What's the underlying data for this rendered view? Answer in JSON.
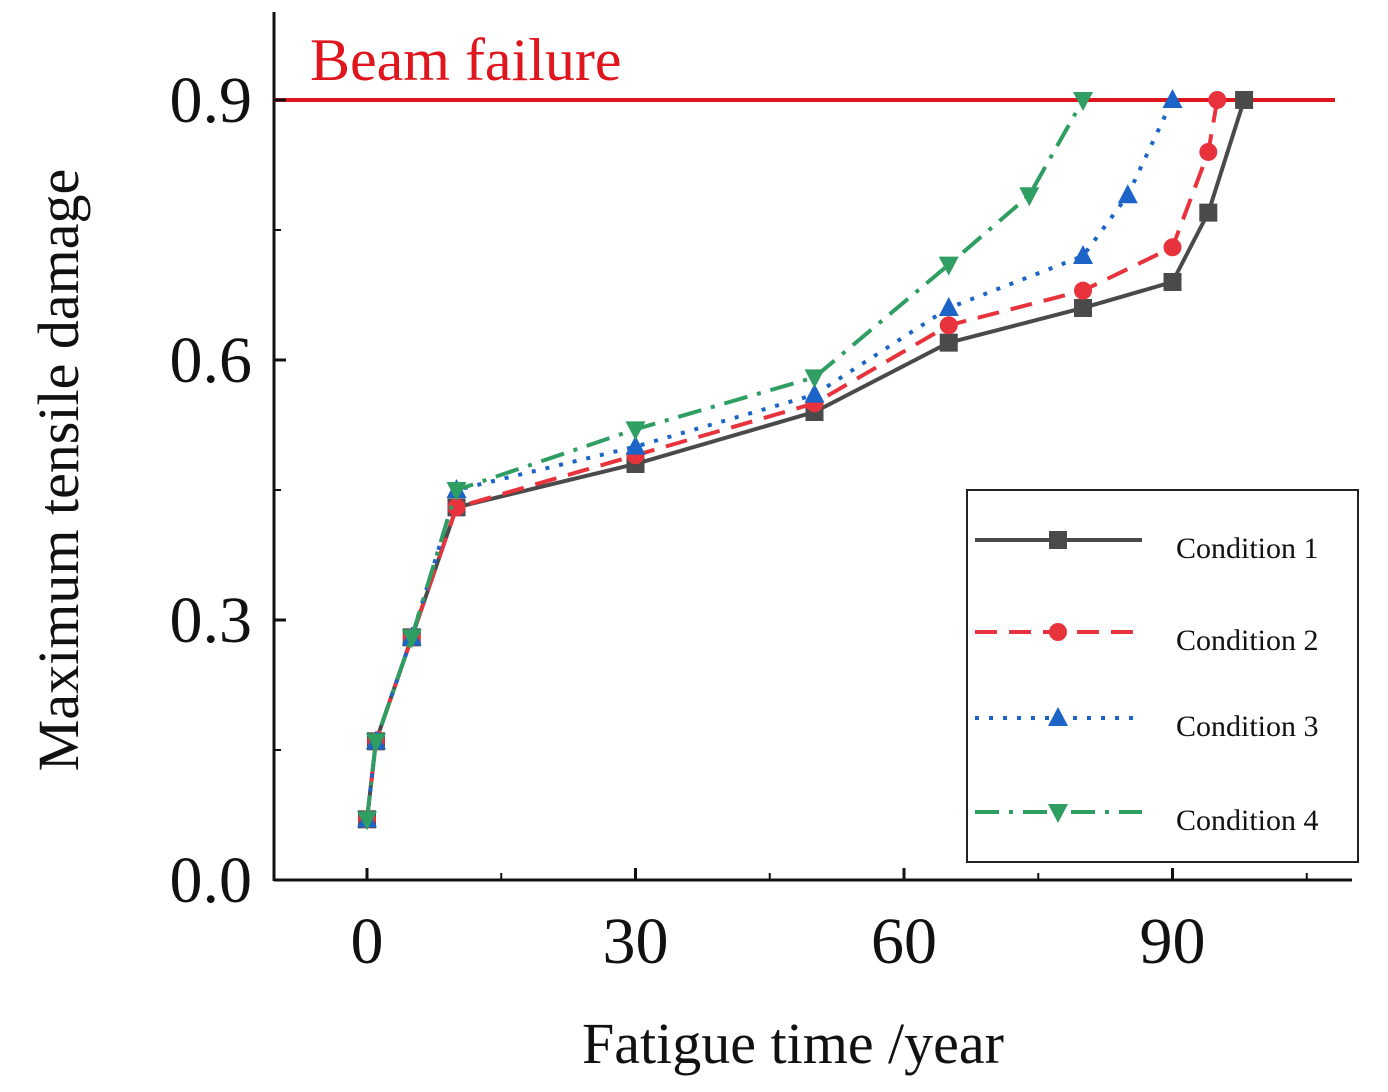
{
  "chart_data": {
    "type": "line",
    "title": "",
    "xlabel": "Fatigue time /year",
    "ylabel": "Maximum tensile damage",
    "xlim": [
      -11,
      110
    ],
    "ylim": [
      0,
      1.0
    ],
    "xticks": [
      0,
      30,
      60,
      90
    ],
    "yticks": [
      0.0,
      0.3,
      0.6,
      0.9
    ],
    "xtick_labels": [
      "0",
      "30",
      "60",
      "90"
    ],
    "ytick_labels": [
      "0.0",
      "0.3",
      "0.6",
      "0.9"
    ],
    "grid": false,
    "legend_position": "bottom-right",
    "reference_line": {
      "label": "Beam failure",
      "y": 0.9,
      "color": "#e0161e"
    },
    "series": [
      {
        "name": "Condition 1",
        "color": "#4a4a4a",
        "line_style": "solid",
        "marker": "square",
        "x": [
          0,
          1,
          5,
          10,
          30,
          50,
          65,
          80,
          90,
          94,
          98
        ],
        "values": [
          0.07,
          0.16,
          0.28,
          0.43,
          0.48,
          0.54,
          0.62,
          0.66,
          0.69,
          0.77,
          0.9
        ]
      },
      {
        "name": "Condition 2",
        "color": "#e8323c",
        "line_style": "dashed",
        "marker": "circle",
        "x": [
          0,
          1,
          5,
          10,
          30,
          50,
          65,
          80,
          90,
          94,
          95
        ],
        "values": [
          0.07,
          0.16,
          0.28,
          0.43,
          0.49,
          0.55,
          0.64,
          0.68,
          0.73,
          0.84,
          0.9
        ]
      },
      {
        "name": "Condition 3",
        "color": "#1c64c8",
        "line_style": "dotted",
        "marker": "triangle-up",
        "x": [
          0,
          1,
          5,
          10,
          30,
          50,
          65,
          80,
          85,
          90
        ],
        "values": [
          0.07,
          0.16,
          0.28,
          0.45,
          0.5,
          0.56,
          0.66,
          0.72,
          0.79,
          0.9
        ]
      },
      {
        "name": "Condition 4",
        "color": "#2e9e62",
        "line_style": "dash-dot",
        "marker": "triangle-down",
        "x": [
          0,
          1,
          5,
          10,
          30,
          50,
          65,
          74,
          80
        ],
        "values": [
          0.07,
          0.16,
          0.28,
          0.45,
          0.52,
          0.58,
          0.71,
          0.79,
          0.9
        ]
      }
    ]
  }
}
